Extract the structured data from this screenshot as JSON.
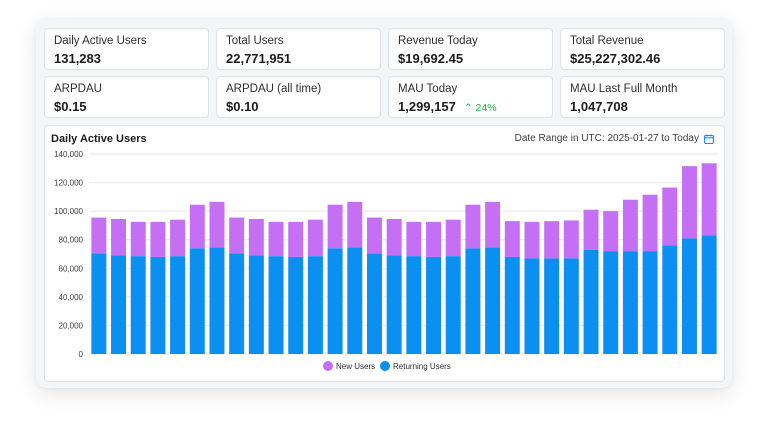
{
  "cards": [
    {
      "label": "Daily Active Users",
      "value": "131,283"
    },
    {
      "label": "Total Users",
      "value": "22,771,951"
    },
    {
      "label": "Revenue Today",
      "value": "$19,692.45"
    },
    {
      "label": "Total Revenue",
      "value": "$25,227,302.46"
    },
    {
      "label": "ARPDAU",
      "value": "$0.15"
    },
    {
      "label": "ARPDAU (all time)",
      "value": "$0.10"
    },
    {
      "label": "MAU Today",
      "value": "1,299,157",
      "change": "⌃ 24%"
    },
    {
      "label": "MAU Last Full Month",
      "value": "1,047,708"
    }
  ],
  "chart_panel": {
    "title": "Daily Active Users",
    "date_range": "Date Range in UTC: 2025-01-27 to Today",
    "calendar_icon": "calendar-icon"
  },
  "colors": {
    "new_users": "#c56ff5",
    "returning_users": "#0b8ff0",
    "positive_change": "#22b14c"
  },
  "chart_data": {
    "type": "bar",
    "stacked": true,
    "ylim": [
      0,
      140000
    ],
    "yticks": [
      "0",
      "20,000",
      "40,000",
      "60,000",
      "80,000",
      "100,000",
      "120,000",
      "140,000"
    ],
    "legend_position": "bottom-center",
    "grid": true,
    "series": [
      {
        "name": "Returning Users",
        "values": [
          70500,
          69000,
          68500,
          68000,
          68500,
          74000,
          74500,
          70500,
          69000,
          68500,
          68000,
          68500,
          74000,
          74500,
          70500,
          69000,
          68500,
          68000,
          68500,
          74000,
          74500,
          68000,
          67000,
          67000,
          67000,
          73000,
          72000,
          72000,
          72000,
          76000,
          81000,
          83000
        ]
      },
      {
        "name": "New Users",
        "values": [
          25000,
          25500,
          24000,
          24500,
          25500,
          30500,
          32000,
          25000,
          25500,
          24000,
          24500,
          25500,
          30500,
          32000,
          25000,
          25500,
          24000,
          24500,
          25500,
          30500,
          32000,
          25000,
          25500,
          26000,
          26500,
          28000,
          28000,
          36000,
          39500,
          40500,
          50500,
          50500
        ]
      }
    ]
  }
}
